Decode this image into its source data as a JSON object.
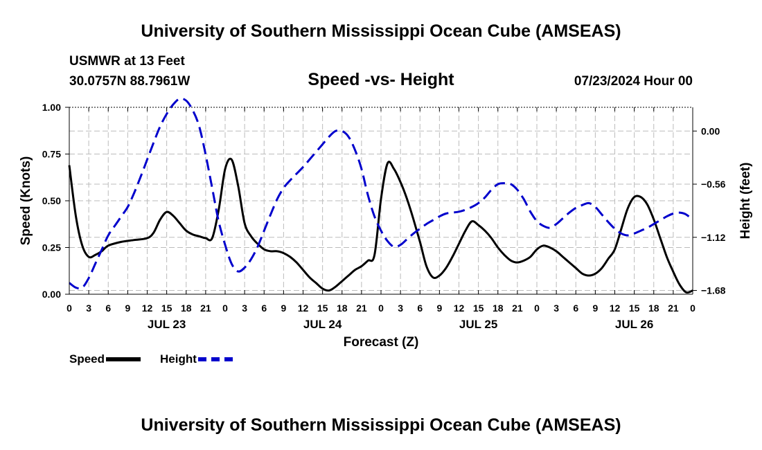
{
  "header": {
    "title": "University of Southern Mississippi Ocean Cube (AMSEAS)",
    "station": "USMWR at 13 Feet",
    "coords": "30.0757N  88.7961W",
    "subtitle": "Speed -vs- Height",
    "datetime": "07/23/2024 Hour 00"
  },
  "footer": {
    "title": "University of Southern Mississippi Ocean Cube (AMSEAS)"
  },
  "legend": {
    "speed_label": "Speed",
    "height_label": "Height"
  },
  "colors": {
    "speed": "#000000",
    "height": "#0000cc",
    "grid": "#bbbbbb"
  },
  "chart_data": {
    "type": "line",
    "title": "Speed -vs- Height",
    "xlabel": "Forecast (Z)",
    "ylabel": "Speed (Knots)",
    "y2label": "Height (feet)",
    "xlim": [
      0,
      96
    ],
    "ylim": [
      0,
      1.0
    ],
    "y2lim": [
      -1.72,
      0.25
    ],
    "x_tick_labels": [
      "0",
      "3",
      "6",
      "9",
      "12",
      "15",
      "18",
      "21",
      "0",
      "3",
      "6",
      "9",
      "12",
      "15",
      "18",
      "21",
      "0",
      "3",
      "6",
      "9",
      "12",
      "15",
      "18",
      "21",
      "0",
      "3",
      "6",
      "9",
      "12",
      "15",
      "18",
      "21",
      "0"
    ],
    "day_labels": [
      {
        "x": 15,
        "label": "JUL 23"
      },
      {
        "x": 39,
        "label": "JUL 24"
      },
      {
        "x": 63,
        "label": "JUL 25"
      },
      {
        "x": 87,
        "label": "JUL 26"
      }
    ],
    "y_ticks": [
      "0.00",
      "0.25",
      "0.50",
      "0.75",
      "1.00"
    ],
    "y2_ticks": [
      "0.00",
      "-0.56",
      "-1.12",
      "-1.68"
    ],
    "grid": true,
    "legend_position": "bottom-left",
    "series": [
      {
        "name": "Speed",
        "axis": "left",
        "style": "solid",
        "x": [
          0,
          1,
          2,
          3,
          4,
          5,
          6,
          8,
          10,
          12,
          13,
          14,
          15,
          16,
          17,
          18,
          19,
          20,
          21,
          22,
          23,
          24,
          25,
          26,
          27,
          28,
          29,
          30,
          31,
          32,
          33,
          34,
          35,
          36,
          37,
          38,
          39,
          40,
          41,
          42,
          43,
          44,
          45,
          46,
          47,
          48,
          49,
          50,
          51,
          52,
          53,
          54,
          55,
          56,
          57,
          58,
          59,
          60,
          61,
          62,
          63,
          64,
          65,
          66,
          67,
          68,
          69,
          70,
          71,
          72,
          73,
          74,
          75,
          76,
          77,
          78,
          79,
          80,
          81,
          82,
          83,
          84,
          85,
          86,
          87,
          88,
          89,
          90,
          91,
          92,
          93,
          94,
          95,
          96
        ],
        "values": [
          0.69,
          0.42,
          0.26,
          0.2,
          0.21,
          0.23,
          0.26,
          0.28,
          0.29,
          0.3,
          0.33,
          0.4,
          0.44,
          0.42,
          0.38,
          0.34,
          0.32,
          0.31,
          0.3,
          0.3,
          0.45,
          0.67,
          0.72,
          0.58,
          0.38,
          0.31,
          0.27,
          0.24,
          0.23,
          0.23,
          0.22,
          0.2,
          0.17,
          0.13,
          0.09,
          0.06,
          0.03,
          0.02,
          0.04,
          0.07,
          0.1,
          0.13,
          0.15,
          0.18,
          0.21,
          0.51,
          0.7,
          0.67,
          0.6,
          0.51,
          0.4,
          0.28,
          0.15,
          0.09,
          0.1,
          0.14,
          0.2,
          0.27,
          0.34,
          0.39,
          0.37,
          0.34,
          0.3,
          0.25,
          0.21,
          0.18,
          0.17,
          0.18,
          0.2,
          0.24,
          0.26,
          0.25,
          0.23,
          0.2,
          0.17,
          0.14,
          0.11,
          0.1,
          0.11,
          0.14,
          0.19,
          0.24,
          0.35,
          0.46,
          0.52,
          0.52,
          0.48,
          0.4,
          0.3,
          0.2,
          0.12,
          0.05,
          0.01,
          0.02
        ]
      },
      {
        "name": "Height",
        "axis": "right",
        "style": "dashed",
        "x": [
          0,
          1,
          2,
          3,
          4,
          5,
          6,
          7,
          8,
          9,
          10,
          11,
          12,
          13,
          14,
          15,
          16,
          17,
          18,
          19,
          20,
          21,
          22,
          23,
          24,
          25,
          26,
          27,
          28,
          29,
          30,
          31,
          32,
          33,
          34,
          35,
          36,
          37,
          38,
          39,
          40,
          41,
          42,
          43,
          44,
          45,
          46,
          47,
          48,
          49,
          50,
          51,
          52,
          53,
          54,
          55,
          56,
          57,
          58,
          59,
          60,
          61,
          62,
          63,
          64,
          65,
          66,
          67,
          68,
          69,
          70,
          71,
          72,
          73,
          74,
          75,
          76,
          77,
          78,
          79,
          80,
          81,
          82,
          83,
          84,
          85,
          86,
          87,
          88,
          89,
          90,
          91,
          92,
          93,
          94,
          95,
          96
        ],
        "values": [
          -1.6,
          -1.65,
          -1.65,
          -1.55,
          -1.4,
          -1.25,
          -1.1,
          -1.0,
          -0.9,
          -0.8,
          -0.65,
          -0.48,
          -0.3,
          -0.12,
          0.05,
          0.18,
          0.28,
          0.34,
          0.32,
          0.22,
          0.05,
          -0.25,
          -0.6,
          -0.95,
          -1.2,
          -1.4,
          -1.48,
          -1.44,
          -1.35,
          -1.22,
          -1.05,
          -0.88,
          -0.72,
          -0.6,
          -0.52,
          -0.45,
          -0.38,
          -0.3,
          -0.22,
          -0.14,
          -0.06,
          0.0,
          0.0,
          -0.06,
          -0.2,
          -0.4,
          -0.68,
          -0.9,
          -1.05,
          -1.16,
          -1.22,
          -1.2,
          -1.14,
          -1.08,
          -1.03,
          -0.98,
          -0.94,
          -0.9,
          -0.87,
          -0.86,
          -0.85,
          -0.83,
          -0.8,
          -0.76,
          -0.7,
          -0.62,
          -0.56,
          -0.55,
          -0.56,
          -0.62,
          -0.72,
          -0.85,
          -0.95,
          -1.0,
          -1.02,
          -0.98,
          -0.92,
          -0.86,
          -0.81,
          -0.78,
          -0.76,
          -0.8,
          -0.88,
          -0.96,
          -1.03,
          -1.08,
          -1.1,
          -1.08,
          -1.05,
          -1.02,
          -0.98,
          -0.94,
          -0.9,
          -0.87,
          -0.86,
          -0.88,
          -0.94
        ]
      }
    ]
  }
}
